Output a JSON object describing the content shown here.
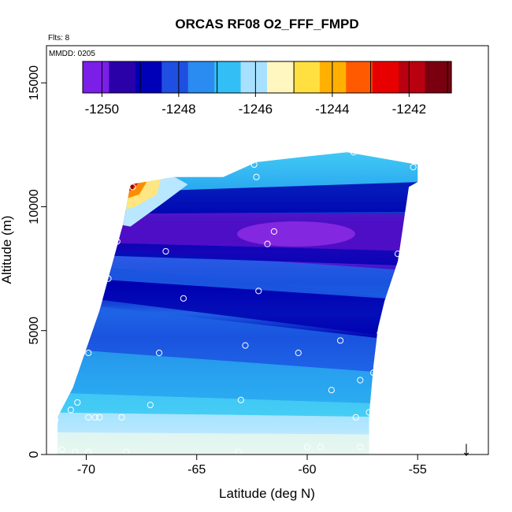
{
  "chart_data": {
    "type": "heatmap",
    "title": "ORCAS RF08 O2_FFF_FMPD",
    "xlabel": "Latitude (deg N)",
    "ylabel": "Altitude (m)",
    "xlim": [
      -71.8,
      -51.8
    ],
    "ylim": [
      0,
      16500
    ],
    "xticks": [
      -70,
      -65,
      -60,
      -55
    ],
    "yticks": [
      0,
      5000,
      10000,
      15000
    ],
    "annotations": {
      "flights": "Flts: 8",
      "date": "MMDD: 0205"
    },
    "colorbar": {
      "range": [
        -1250.5,
        -1240.9
      ],
      "ticks": [
        -1250,
        -1248,
        -1246,
        -1244,
        -1242
      ],
      "colors": [
        "#7b1ee8",
        "#2a00a8",
        "#0000b8",
        "#1f4fe0",
        "#2a8cf0",
        "#33bff5",
        "#a8e0ff",
        "#fff6c0",
        "#ffe040",
        "#ffb000",
        "#ff5a00",
        "#e80000",
        "#b80010",
        "#7a0010"
      ]
    },
    "colors": {
      "purple": "#8a2be2",
      "navy": "#0000b0",
      "blue": "#1f63e6",
      "sky": "#2aa9f0",
      "cyan": "#45cdf5",
      "pale": "#b8e7ff",
      "mint": "#e6f7ee",
      "yellow": "#ffe680",
      "orange": "#ff8c00",
      "red": "#e60000",
      "darkred": "#a00000"
    },
    "bands": [
      {
        "alt": [
          0,
          900
        ],
        "value": -1246.3,
        "color": "mint"
      },
      {
        "alt": [
          900,
          1800
        ],
        "value": -1246.6,
        "color": "pale"
      },
      {
        "alt": [
          1800,
          2600
        ],
        "value": -1247.0,
        "color": "sky"
      },
      {
        "alt": [
          2600,
          4800
        ],
        "value": -1248.0,
        "color": "blue"
      },
      {
        "alt": [
          4800,
          6800
        ],
        "value": -1248.8,
        "color": "navy"
      },
      {
        "alt": [
          6800,
          8500
        ],
        "value": -1248.3,
        "color": "blue"
      },
      {
        "alt": [
          8500,
          10200
        ],
        "value": -1249.6,
        "color": "purple"
      },
      {
        "alt": [
          10200,
          12200
        ],
        "value": -1247.0,
        "color": "sky"
      },
      {
        "alt": [
          9200,
          10900
        ],
        "value": -1242.5,
        "color": "red"
      }
    ],
    "observations": [
      {
        "lat": -67.9,
        "alt": 10800
      },
      {
        "lat": -62.3,
        "alt": 11200
      },
      {
        "lat": -62.4,
        "alt": 11700
      },
      {
        "lat": -55.2,
        "alt": 11600
      },
      {
        "lat": -57.9,
        "alt": 12200
      },
      {
        "lat": -61.5,
        "alt": 9000
      },
      {
        "lat": -61.8,
        "alt": 8500
      },
      {
        "lat": -55.9,
        "alt": 8100
      },
      {
        "lat": -68.6,
        "alt": 8600
      },
      {
        "lat": -66.4,
        "alt": 8200
      },
      {
        "lat": -69.0,
        "alt": 7100
      },
      {
        "lat": -65.6,
        "alt": 6300
      },
      {
        "lat": -62.2,
        "alt": 6600
      },
      {
        "lat": -56.7,
        "alt": 4900
      },
      {
        "lat": -58.5,
        "alt": 4600
      },
      {
        "lat": -62.8,
        "alt": 4400
      },
      {
        "lat": -60.4,
        "alt": 4100
      },
      {
        "lat": -66.7,
        "alt": 4100
      },
      {
        "lat": -70.2,
        "alt": 4100
      },
      {
        "lat": -69.9,
        "alt": 4100
      },
      {
        "lat": -57.0,
        "alt": 3300
      },
      {
        "lat": -57.6,
        "alt": 3000
      },
      {
        "lat": -58.9,
        "alt": 2600
      },
      {
        "lat": -63.0,
        "alt": 2200
      },
      {
        "lat": -67.1,
        "alt": 2000
      },
      {
        "lat": -70.4,
        "alt": 2100
      },
      {
        "lat": -70.7,
        "alt": 1800
      },
      {
        "lat": -57.2,
        "alt": 1700
      },
      {
        "lat": -57.8,
        "alt": 1500
      },
      {
        "lat": -68.4,
        "alt": 1500
      },
      {
        "lat": -69.4,
        "alt": 1500
      },
      {
        "lat": -69.9,
        "alt": 1500
      },
      {
        "lat": -71.4,
        "alt": 1400
      },
      {
        "lat": -69.6,
        "alt": 1500
      },
      {
        "lat": -63.1,
        "alt": 100
      },
      {
        "lat": -60.0,
        "alt": 300
      },
      {
        "lat": -59.4,
        "alt": 300
      },
      {
        "lat": -57.6,
        "alt": 300
      },
      {
        "lat": -68.2,
        "alt": 100
      },
      {
        "lat": -69.9,
        "alt": 100
      },
      {
        "lat": -70.5,
        "alt": 100
      },
      {
        "lat": -71.1,
        "alt": 200
      }
    ],
    "marker": "↓"
  }
}
